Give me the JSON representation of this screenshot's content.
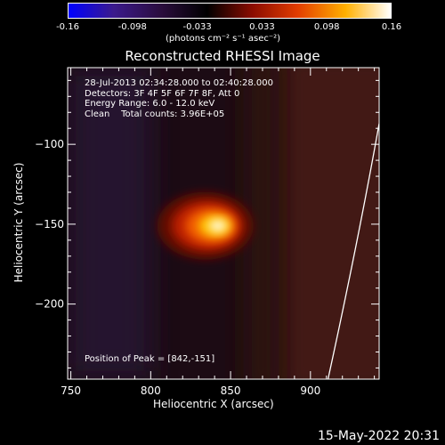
{
  "colorbar": {
    "tick_labels": [
      "-0.16",
      "-0.098",
      "-0.033",
      "0.033",
      "0.098",
      "0.16"
    ],
    "unit_label": "(photons cm⁻² s⁻¹ asec⁻²)",
    "range": [
      -0.16,
      0.16
    ],
    "colormap": [
      "#0000ff",
      "#3b1a8c",
      "#2a0d3c",
      "#000000",
      "#8a0c00",
      "#e23c00",
      "#ffb000",
      "#ffffff"
    ]
  },
  "chart_data": {
    "type": "heatmap",
    "title": "Reconstructed RHESSI Image",
    "xlabel": "Heliocentric X (arcsec)",
    "ylabel": "Heliocentric Y (arcsec)",
    "xlim": [
      748,
      943
    ],
    "ylim": [
      -247,
      -52
    ],
    "x_ticks": [
      750,
      800,
      850,
      900
    ],
    "y_ticks": [
      -100,
      -150,
      -200
    ],
    "x_tick_labels": [
      "750",
      "800",
      "850",
      "900"
    ],
    "y_tick_labels": [
      "−100",
      "−150",
      "−200"
    ],
    "peak": {
      "x": 842,
      "y": -151
    },
    "annotations": {
      "time_range": "28-Jul-2013 02:34:28.000 to 02:40:28.000",
      "detectors": "Detectors: 3F 4F 5F 6F 7F 8F, Att 0",
      "energy_range": "Energy Range: 6.0 - 12.0 keV",
      "clean_counts": "Clean    Total counts: 3.96E+05",
      "peak_position": "Position of Peak = [842,-151]"
    },
    "limb_curve": [
      [
        943,
        -87
      ],
      [
        930,
        -160
      ],
      [
        911,
        -247
      ]
    ]
  },
  "footer": {
    "date": "15-May-2022 20:31"
  }
}
